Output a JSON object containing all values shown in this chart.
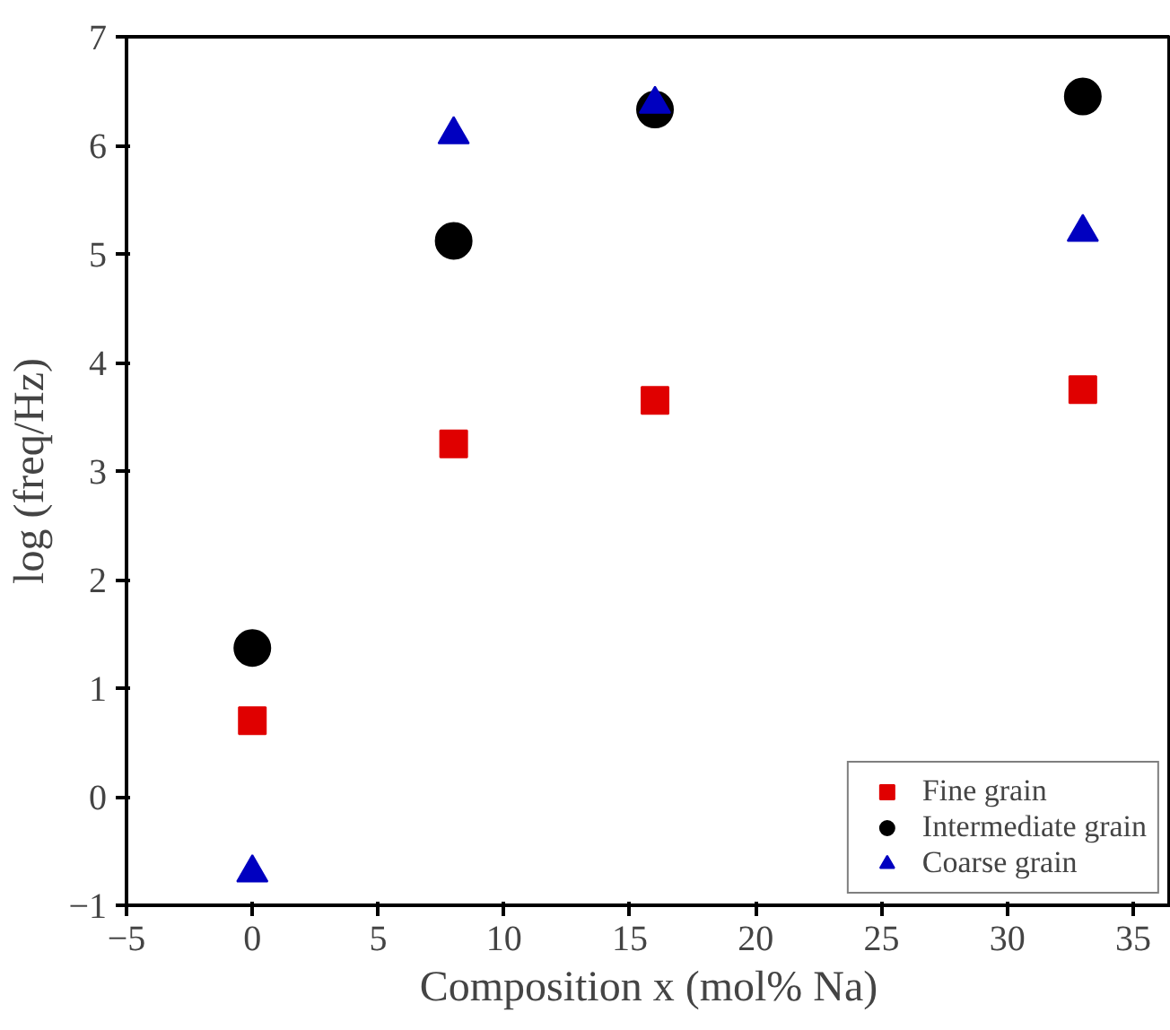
{
  "chart_data": {
    "type": "scatter",
    "xlabel": "Composition x (mol% Na)",
    "ylabel": "log (freq/Hz)",
    "x": [
      0,
      8,
      16,
      33
    ],
    "series": [
      {
        "name": "Fine grain",
        "color": "#e00000",
        "values": [
          0.7,
          3.25,
          3.65,
          3.75
        ],
        "marker": "square"
      },
      {
        "name": "Intermediate grain",
        "color": "#000000",
        "values": [
          1.37,
          5.12,
          6.33,
          6.45
        ],
        "marker": "circle"
      },
      {
        "name": "Coarse grain",
        "color": "#0000c0",
        "values": [
          -0.7,
          6.1,
          6.38,
          5.2
        ],
        "marker": "triangle"
      }
    ],
    "xlim": [
      -5,
      36.5
    ],
    "xticks": [
      -5,
      0,
      5,
      10,
      15,
      20,
      25,
      30,
      35
    ],
    "ylim": [
      -1,
      7
    ],
    "yticks": [
      -1,
      0,
      1,
      2,
      3,
      4,
      5,
      6,
      7
    ],
    "grid": false,
    "legend": "bottom right"
  }
}
